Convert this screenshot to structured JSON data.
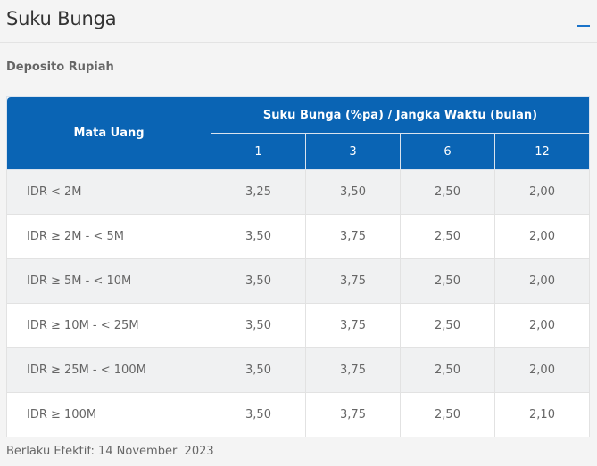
{
  "header": {
    "title": "Suku Bunga",
    "collapse_icon": "minus-icon"
  },
  "section": {
    "subtitle": "Deposito Rupiah"
  },
  "table": {
    "currency_header": "Mata Uang",
    "group_header": "Suku Bunga (%pa) / Jangka Waktu (bulan)",
    "terms": [
      "1",
      "3",
      "6",
      "12"
    ],
    "rows": [
      {
        "label": "IDR < 2M",
        "values": [
          "3,25",
          "3,50",
          "2,50",
          "2,00"
        ]
      },
      {
        "label": "IDR ≥ 2M - < 5M",
        "values": [
          "3,50",
          "3,75",
          "2,50",
          "2,00"
        ]
      },
      {
        "label": "IDR ≥ 5M - < 10M",
        "values": [
          "3,50",
          "3,75",
          "2,50",
          "2,00"
        ]
      },
      {
        "label": "IDR ≥ 10M - < 25M",
        "values": [
          "3,50",
          "3,75",
          "2,50",
          "2,00"
        ]
      },
      {
        "label": "IDR ≥ 25M - < 100M",
        "values": [
          "3,50",
          "3,75",
          "2,50",
          "2,00"
        ]
      },
      {
        "label": "IDR ≥ 100M",
        "values": [
          "3,50",
          "3,75",
          "2,50",
          "2,10"
        ]
      }
    ]
  },
  "footer": {
    "effective_text": "Berlaku Efektif: 14 November  2023"
  },
  "colors": {
    "header_blue": "#0a64b4",
    "accent": "#1a73c9"
  }
}
